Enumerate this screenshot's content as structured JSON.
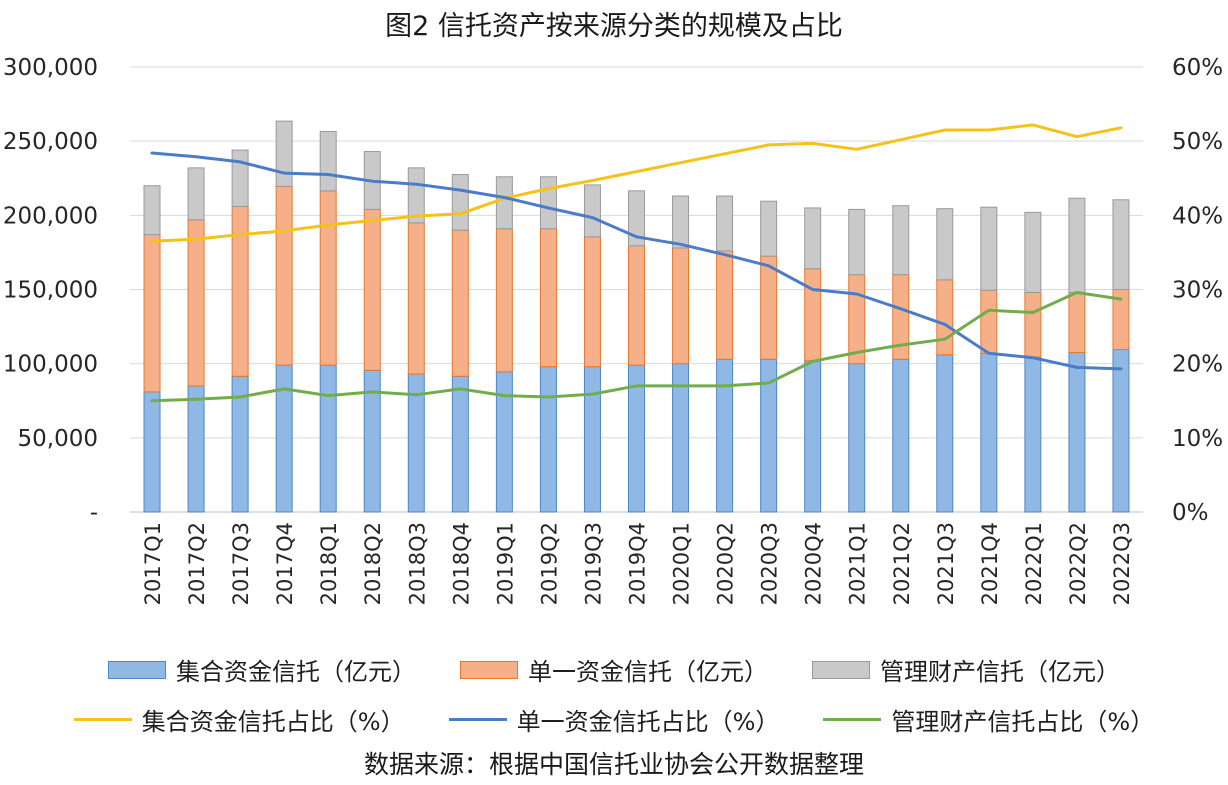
{
  "chart_data": {
    "type": "bar",
    "title": "图2 信托资产按来源分类的规模及占比",
    "categories": [
      "2017Q1",
      "2017Q2",
      "2017Q3",
      "2017Q4",
      "2018Q1",
      "2018Q2",
      "2018Q3",
      "2018Q4",
      "2019Q1",
      "2019Q2",
      "2019Q3",
      "2019Q4",
      "2020Q1",
      "2020Q2",
      "2020Q3",
      "2020Q4",
      "2021Q1",
      "2021Q2",
      "2021Q3",
      "2021Q4",
      "2022Q1",
      "2022Q2",
      "2022Q3"
    ],
    "stacked_bars": [
      {
        "name": "集合资金信托（亿元）",
        "color": "#8fb8e4",
        "border": "#4f86c6",
        "values": [
          81000,
          85000,
          91500,
          99000,
          99000,
          95500,
          93000,
          91500,
          94500,
          98000,
          98000,
          99000,
          100000,
          103000,
          103000,
          102000,
          100000,
          103000,
          106000,
          107000,
          104500,
          107500,
          109500
        ]
      },
      {
        "name": "单一资金信托（亿元）",
        "color": "#f5b08a",
        "border": "#e6782f",
        "values": [
          106000,
          112000,
          114500,
          120500,
          117500,
          108500,
          102000,
          98500,
          96500,
          93000,
          87500,
          80500,
          78000,
          73000,
          69500,
          62000,
          60000,
          57000,
          50500,
          42500,
          43500,
          40500,
          40500
        ]
      },
      {
        "name": "管理财产信托（亿元）",
        "color": "#c9c9c9",
        "border": "#9a9a9a",
        "values": [
          33000,
          35000,
          38000,
          44000,
          40000,
          39000,
          37000,
          37500,
          35000,
          35000,
          35000,
          37000,
          35000,
          37000,
          37000,
          41000,
          44000,
          46500,
          48000,
          56000,
          54000,
          63500,
          60500
        ]
      }
    ],
    "lines": [
      {
        "name": "集合资金信托占比（%）",
        "color": "#f6c21a",
        "values": [
          36.5,
          36.8,
          37.4,
          37.9,
          38.7,
          39.3,
          39.9,
          40.2,
          42.3,
          43.6,
          44.7,
          45.9,
          47.1,
          48.3,
          49.5,
          49.7,
          48.9,
          50.2,
          51.5,
          51.5,
          52.2,
          50.6,
          51.8
        ]
      },
      {
        "name": "单一资金信托占比（%）",
        "color": "#4a7cc7",
        "values": [
          48.4,
          47.9,
          47.2,
          45.7,
          45.5,
          44.6,
          44.2,
          43.4,
          42.4,
          41.0,
          39.7,
          37.1,
          36.1,
          34.7,
          33.2,
          30.0,
          29.4,
          27.4,
          25.3,
          21.4,
          20.8,
          19.5,
          19.3
        ]
      },
      {
        "name": "管理财产信托占比（%）",
        "color": "#72ad4d",
        "values": [
          15.0,
          15.2,
          15.5,
          16.6,
          15.7,
          16.2,
          15.8,
          16.6,
          15.7,
          15.5,
          15.9,
          17.0,
          17.0,
          17.0,
          17.4,
          20.3,
          21.5,
          22.5,
          23.3,
          27.2,
          26.9,
          29.6,
          28.7
        ]
      }
    ],
    "y_left": {
      "ticks": [
        "-",
        "50,000",
        "100,000",
        "150,000",
        "200,000",
        "250,000",
        "300,000"
      ],
      "ylim": [
        0,
        300000
      ]
    },
    "y_right": {
      "ticks": [
        "0%",
        "10%",
        "20%",
        "30%",
        "40%",
        "50%",
        "60%"
      ],
      "ylim": [
        0,
        60
      ]
    },
    "grid": true,
    "legend_position": "bottom"
  },
  "source_note": "数据来源：根据中国信托业协会公开数据整理"
}
